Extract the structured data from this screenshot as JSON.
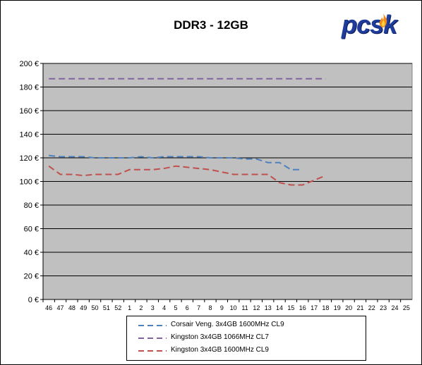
{
  "chart_data": {
    "type": "line",
    "title": "DDR3 - 12GB",
    "xlabel": "",
    "ylabel": "",
    "ylim": [
      0,
      200
    ],
    "y_ticks": [
      "0 €",
      "20 €",
      "40 €",
      "60 €",
      "80 €",
      "100 €",
      "120 €",
      "140 €",
      "160 €",
      "180 €",
      "200 €"
    ],
    "categories": [
      "46",
      "47",
      "48",
      "49",
      "50",
      "51",
      "52",
      "1",
      "2",
      "3",
      "4",
      "5",
      "6",
      "7",
      "8",
      "9",
      "10",
      "11",
      "12",
      "13",
      "14",
      "15",
      "16",
      "17",
      "18",
      "19",
      "20",
      "21",
      "22",
      "23",
      "24",
      "25"
    ],
    "grid": true,
    "legend_position": "bottom",
    "background_color": "#c0c0c0",
    "series": [
      {
        "name": "Corsair Veng. 3x4GB 1600MHz CL9",
        "color": "#4f81bd",
        "values": [
          122,
          121,
          121,
          121,
          120,
          120,
          120,
          120,
          121,
          120,
          121,
          121,
          121,
          121,
          120,
          120,
          120,
          119,
          119,
          116,
          116,
          110,
          110,
          null,
          null,
          null,
          null,
          null,
          null,
          null,
          null,
          null
        ]
      },
      {
        "name": "Kingston 3x4GB 1066MHz CL7",
        "color": "#8064a2",
        "values": [
          187,
          187,
          187,
          187,
          187,
          187,
          187,
          187,
          187,
          187,
          187,
          187,
          187,
          187,
          187,
          187,
          187,
          187,
          187,
          187,
          187,
          187,
          187,
          187,
          187,
          null,
          null,
          null,
          null,
          null,
          null,
          null
        ]
      },
      {
        "name": "Kingston 3x4GB 1600MHz CL9",
        "color": "#c0504d",
        "values": [
          113,
          106,
          106,
          105,
          106,
          106,
          106,
          110,
          110,
          110,
          111,
          113,
          112,
          111,
          110,
          108,
          106,
          106,
          106,
          106,
          99,
          97,
          97,
          101,
          105,
          null,
          null,
          null,
          null,
          null,
          null,
          null
        ]
      }
    ]
  },
  "branding": {
    "logo_text": "pcsk"
  }
}
